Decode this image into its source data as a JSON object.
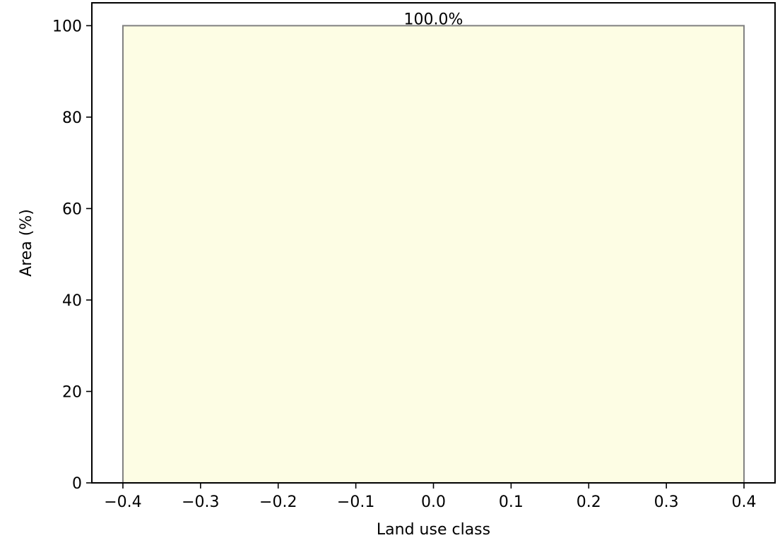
{
  "chart_data": {
    "type": "bar",
    "categories": [
      0.0
    ],
    "values": [
      100.0
    ],
    "bar_width": 0.8,
    "data_labels": [
      "100.0%"
    ],
    "xlabel": "Land use class",
    "ylabel": "Area (%)",
    "xlim": [
      -0.44,
      0.44
    ],
    "ylim": [
      0,
      105
    ],
    "xticks": [
      -0.4,
      -0.3,
      -0.2,
      -0.1,
      0.0,
      0.1,
      0.2,
      0.3,
      0.4
    ],
    "xtick_labels": [
      "−0.4",
      "−0.3",
      "−0.2",
      "−0.1",
      "0.0",
      "0.1",
      "0.2",
      "0.3",
      "0.4"
    ],
    "yticks": [
      0,
      20,
      40,
      60,
      80,
      100
    ],
    "ytick_labels": [
      "0",
      "20",
      "40",
      "60",
      "80",
      "100"
    ],
    "grid": false,
    "legend": false,
    "colors": {
      "bar_fill": "#fdfde4",
      "bar_edge": "#808080",
      "axes": "#000000"
    }
  }
}
